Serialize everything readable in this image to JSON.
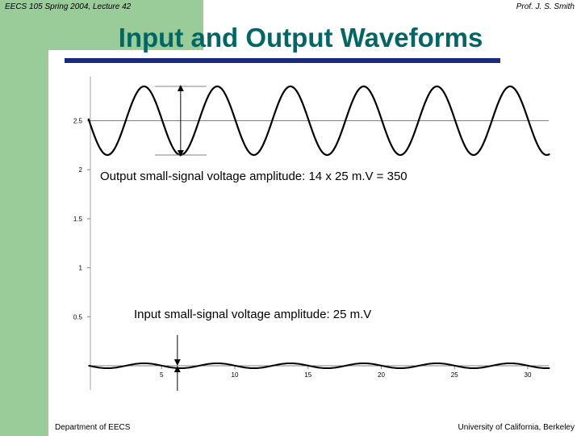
{
  "header": {
    "course": "EECS 105 Spring 2004, Lecture 42",
    "professor": "Prof. J. S. Smith"
  },
  "title": "Input and Output Waveforms",
  "footer": {
    "department": "Department of EECS",
    "university": "University of California, Berkeley"
  },
  "colors": {
    "title": "#006666",
    "title_rule": "#1a2a80",
    "background_accent": "#99cc99",
    "trace": "#000000",
    "axis": "#808080"
  },
  "chart_data": {
    "type": "line",
    "xlim": [
      0,
      32
    ],
    "ylim": [
      0,
      2.85
    ],
    "x_ticks": [
      5,
      10,
      15,
      20,
      25,
      30
    ],
    "y_ticks": [
      0.5,
      1,
      1.5,
      2,
      2.5
    ],
    "x_tick_labels": [
      "5",
      "10",
      "15",
      "20",
      "25",
      "30"
    ],
    "y_tick_labels": [
      "0.5",
      "1",
      "1.5",
      "2",
      "2.5"
    ],
    "grid": false,
    "series": [
      {
        "role": "output",
        "offset": 2.5,
        "amplitude": 0.35,
        "period": 5,
        "x_range": [
          0,
          31.5
        ],
        "x_first_min": 6.3
      },
      {
        "role": "input",
        "offset": 0,
        "amplitude": 0.025,
        "period": 5,
        "x_range": [
          0,
          31.5
        ],
        "x_first_min": 6.3
      }
    ],
    "annotations": {
      "output": "Output small-signal voltage amplitude:  14 x 25 m.V = 350",
      "input": "Input small-signal voltage amplitude:  25 m.V"
    }
  }
}
